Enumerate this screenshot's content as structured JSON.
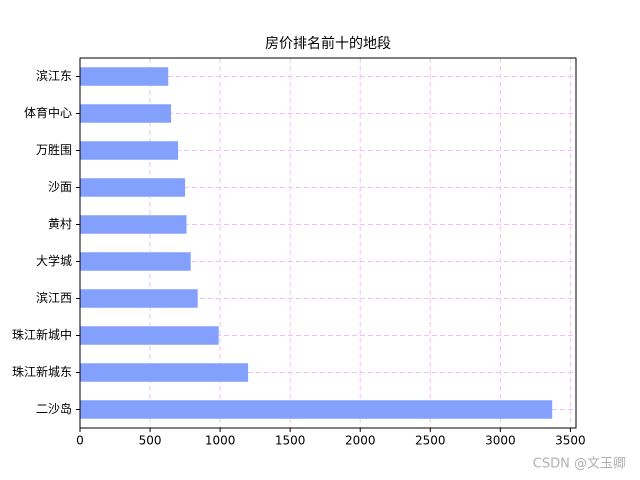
{
  "chart_data": {
    "type": "barh",
    "title": "房价排名前十的地段",
    "categories": [
      "滨江东",
      "体育中心",
      "万胜围",
      "沙面",
      "黄村",
      "大学城",
      "滨江西",
      "珠江新城中",
      "珠江新城东",
      "二沙岛"
    ],
    "values": [
      630,
      650,
      700,
      750,
      760,
      790,
      840,
      990,
      1200,
      3370
    ],
    "color": "#84a0fd",
    "xlim": [
      0,
      3540
    ],
    "xticks": [
      0,
      500,
      1000,
      1500,
      2000,
      2500,
      3000,
      3500
    ],
    "grid": true,
    "grid_color": "#f0c4f0"
  },
  "watermark": "CSDN @文玉卿"
}
